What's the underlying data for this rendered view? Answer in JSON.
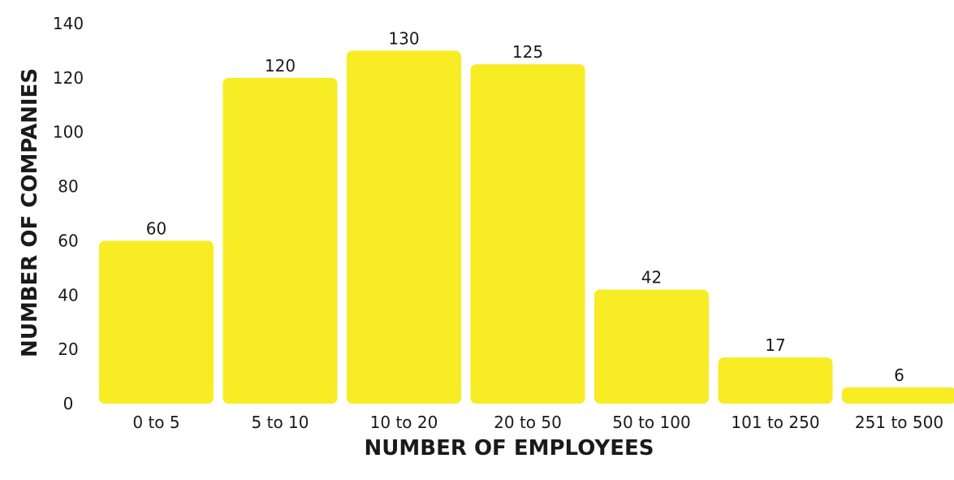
{
  "chart_data": {
    "type": "bar",
    "title": "",
    "xlabel": "NUMBER OF EMPLOYEES",
    "ylabel": "NUMBER OF COMPANIES",
    "categories": [
      "0 to 5",
      "5 to 10",
      "10 to 20",
      "20 to 50",
      "50 to 100",
      "101 to 250",
      "251 to 500"
    ],
    "values": [
      60,
      120,
      130,
      125,
      42,
      17,
      6
    ],
    "data_labels": [
      "60",
      "120",
      "130",
      "125",
      "42",
      "17",
      "6"
    ],
    "ylim": [
      0,
      140
    ],
    "yticks": [
      0,
      20,
      40,
      60,
      80,
      100,
      120,
      140
    ],
    "ytick_labels": [
      "0",
      "20",
      "40",
      "60",
      "80",
      "100",
      "120",
      "140"
    ],
    "grid": false,
    "legend": "none",
    "bar_color": "#F8EC24"
  }
}
